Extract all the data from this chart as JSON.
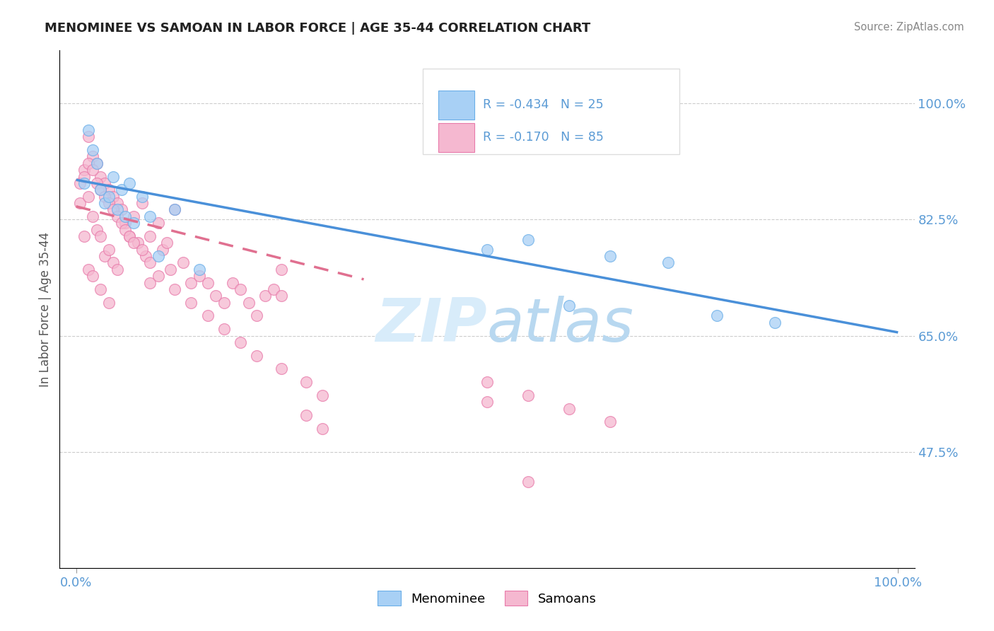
{
  "title": "MENOMINEE VS SAMOAN IN LABOR FORCE | AGE 35-44 CORRELATION CHART",
  "source_text": "Source: ZipAtlas.com",
  "ylabel": "In Labor Force | Age 35-44",
  "legend_r1": "R = -0.434",
  "legend_n1": "N = 25",
  "legend_r2": "R = -0.170",
  "legend_n2": "N = 85",
  "color_menominee": "#a8d0f5",
  "color_samoans": "#f5b8d0",
  "edge_menominee": "#6aaee8",
  "edge_samoans": "#e87aaa",
  "color_line_menominee": "#4a90d9",
  "color_line_samoans": "#e07090",
  "watermark_color": "#d8ecfa",
  "tick_color": "#5b9bd5",
  "ytick_vals": [
    0.475,
    0.65,
    0.825,
    1.0
  ],
  "ytick_labels": [
    "47.5%",
    "65.0%",
    "82.5%",
    "100.0%"
  ],
  "xlim": [
    -0.02,
    1.02
  ],
  "ylim": [
    0.3,
    1.08
  ],
  "men_line_x0": 0.0,
  "men_line_y0": 0.885,
  "men_line_x1": 1.0,
  "men_line_y1": 0.655,
  "sam_line_x0": 0.0,
  "sam_line_y0": 0.845,
  "sam_line_x1": 0.35,
  "sam_line_y1": 0.735,
  "menominee_x": [
    0.01,
    0.015,
    0.02,
    0.025,
    0.03,
    0.035,
    0.04,
    0.045,
    0.05,
    0.055,
    0.06,
    0.065,
    0.07,
    0.08,
    0.09,
    0.1,
    0.12,
    0.15,
    0.5,
    0.55,
    0.6,
    0.65,
    0.72,
    0.78,
    0.85
  ],
  "menominee_y": [
    0.88,
    0.96,
    0.93,
    0.91,
    0.87,
    0.85,
    0.86,
    0.89,
    0.84,
    0.87,
    0.83,
    0.88,
    0.82,
    0.86,
    0.83,
    0.77,
    0.84,
    0.75,
    0.78,
    0.795,
    0.695,
    0.77,
    0.76,
    0.68,
    0.67
  ],
  "samoans_x": [
    0.005,
    0.01,
    0.01,
    0.015,
    0.015,
    0.015,
    0.02,
    0.02,
    0.02,
    0.025,
    0.025,
    0.03,
    0.03,
    0.03,
    0.035,
    0.035,
    0.04,
    0.04,
    0.04,
    0.045,
    0.045,
    0.05,
    0.05,
    0.055,
    0.06,
    0.065,
    0.07,
    0.075,
    0.08,
    0.085,
    0.09,
    0.09,
    0.1,
    0.105,
    0.11,
    0.115,
    0.12,
    0.13,
    0.14,
    0.15,
    0.16,
    0.17,
    0.18,
    0.19,
    0.2,
    0.21,
    0.22,
    0.23,
    0.24,
    0.25,
    0.005,
    0.01,
    0.015,
    0.02,
    0.025,
    0.03,
    0.035,
    0.04,
    0.045,
    0.05,
    0.055,
    0.06,
    0.065,
    0.07,
    0.08,
    0.09,
    0.1,
    0.12,
    0.14,
    0.16,
    0.18,
    0.2,
    0.22,
    0.25,
    0.28,
    0.3,
    0.25,
    0.28,
    0.3,
    0.5,
    0.55,
    0.5,
    0.55,
    0.6,
    0.65
  ],
  "samoans_y": [
    0.85,
    0.9,
    0.8,
    0.95,
    0.86,
    0.75,
    0.92,
    0.83,
    0.74,
    0.91,
    0.81,
    0.89,
    0.8,
    0.72,
    0.88,
    0.77,
    0.87,
    0.78,
    0.7,
    0.86,
    0.76,
    0.85,
    0.75,
    0.84,
    0.82,
    0.8,
    0.83,
    0.79,
    0.85,
    0.77,
    0.8,
    0.73,
    0.82,
    0.78,
    0.79,
    0.75,
    0.84,
    0.76,
    0.73,
    0.74,
    0.73,
    0.71,
    0.7,
    0.73,
    0.72,
    0.7,
    0.68,
    0.71,
    0.72,
    0.71,
    0.88,
    0.89,
    0.91,
    0.9,
    0.88,
    0.87,
    0.86,
    0.85,
    0.84,
    0.83,
    0.82,
    0.81,
    0.8,
    0.79,
    0.78,
    0.76,
    0.74,
    0.72,
    0.7,
    0.68,
    0.66,
    0.64,
    0.62,
    0.6,
    0.58,
    0.56,
    0.75,
    0.53,
    0.51,
    0.55,
    0.43,
    0.58,
    0.56,
    0.54,
    0.52
  ]
}
